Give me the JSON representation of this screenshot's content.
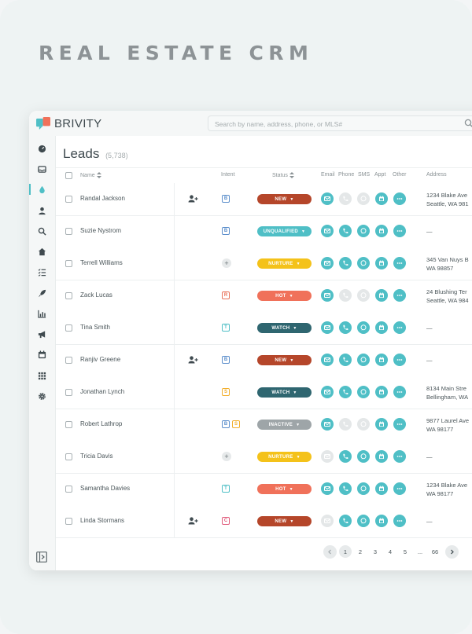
{
  "hero": {
    "title": "REAL ESTATE CRM"
  },
  "app": {
    "brand": "BRIVITY",
    "search_placeholder": "Search by name, address, phone, or MLS#"
  },
  "sidebar": {
    "items": [
      {
        "name": "dashboard-icon"
      },
      {
        "name": "inbox-icon"
      },
      {
        "name": "droplet-icon",
        "active": true
      },
      {
        "name": "person-icon"
      },
      {
        "name": "search-icon"
      },
      {
        "name": "home-icon"
      },
      {
        "name": "checklist-icon"
      },
      {
        "name": "rocket-icon"
      },
      {
        "name": "chart-icon"
      },
      {
        "name": "megaphone-icon"
      },
      {
        "name": "calendar-icon"
      },
      {
        "name": "grid-icon"
      },
      {
        "name": "gear-icon"
      }
    ]
  },
  "leads": {
    "title": "Leads",
    "count": "(5,738)",
    "headers": {
      "name": "Name",
      "intent": "Intent",
      "status": "Status",
      "email": "Email",
      "phone": "Phone",
      "sms": "SMS",
      "appt": "Appt",
      "other": "Other",
      "address": "Address"
    },
    "rows": [
      {
        "name": "Randal Jackson",
        "user_icon": true,
        "intent": [
          "B"
        ],
        "status": "NEW",
        "email": true,
        "phone": false,
        "sms": false,
        "address": [
          "1234 Blake Ave",
          "Seattle, WA 981"
        ]
      },
      {
        "name": "Suzie Nystrom",
        "user_icon": false,
        "intent": [
          "B"
        ],
        "status": "UNQUALIFIED",
        "email": true,
        "phone": true,
        "sms": true,
        "address": [
          "—"
        ]
      },
      {
        "name": "Terrell Williams",
        "user_icon": false,
        "intent": [
          "+"
        ],
        "status": "NURTURE",
        "email": true,
        "phone": true,
        "sms": true,
        "address": [
          "345 Van Nuys B",
          "WA 98857"
        ]
      },
      {
        "name": "Zack Lucas",
        "user_icon": false,
        "intent": [
          "R"
        ],
        "status": "HOT",
        "email": true,
        "phone": false,
        "sms": false,
        "address": [
          "24 Blushing Ter",
          "Seattle, WA 984"
        ]
      },
      {
        "name": "Tina Smith",
        "user_icon": false,
        "intent": [
          "T"
        ],
        "status": "WATCH",
        "email": true,
        "phone": true,
        "sms": true,
        "address": [
          "—"
        ]
      },
      {
        "name": "Ranjiv Greene",
        "user_icon": true,
        "intent": [
          "B"
        ],
        "status": "NEW",
        "email": true,
        "phone": true,
        "sms": true,
        "address": [
          "—"
        ]
      },
      {
        "name": "Jonathan Lynch",
        "user_icon": false,
        "intent": [
          "S"
        ],
        "status": "WATCH",
        "email": true,
        "phone": true,
        "sms": true,
        "address": [
          "8134 Main Stre",
          "Bellingham, WA"
        ]
      },
      {
        "name": "Robert Lathrop",
        "user_icon": false,
        "intent": [
          "B",
          "S"
        ],
        "status": "INACTIVE",
        "email": true,
        "phone": false,
        "sms": false,
        "address": [
          "9877 Laurel Ave",
          "WA 98177"
        ]
      },
      {
        "name": "Tricia Davis",
        "user_icon": false,
        "intent": [
          "+"
        ],
        "status": "NURTURE",
        "email": false,
        "phone": true,
        "sms": true,
        "address": [
          "—"
        ]
      },
      {
        "name": "Samantha Davies",
        "user_icon": false,
        "intent": [
          "T"
        ],
        "status": "HOT",
        "email": true,
        "phone": true,
        "sms": true,
        "address": [
          "1234 Blake Ave",
          "WA 98177"
        ]
      },
      {
        "name": "Linda Stormans",
        "user_icon": true,
        "intent": [
          "C"
        ],
        "status": "NEW",
        "email": false,
        "phone": true,
        "sms": true,
        "address": [
          "—"
        ]
      }
    ]
  },
  "pagination": {
    "pages": [
      "1",
      "2",
      "3",
      "4",
      "5",
      "...",
      "66"
    ],
    "current": "1"
  },
  "colors": {
    "teal": "#4fbfc6",
    "disabled": "#e4e7e8",
    "NEW": "#b5462a",
    "UNQUALIFIED": "#4fbfc6",
    "NURTURE": "#f4c21a",
    "HOT": "#f0715a",
    "WATCH": "#2f6670",
    "INACTIVE": "#9ea5a8",
    "intent_B": "#5b8ecb",
    "intent_R": "#e87158",
    "intent_T": "#4fbfc6",
    "intent_S": "#f2ae2b",
    "intent_C": "#e05b7b"
  }
}
